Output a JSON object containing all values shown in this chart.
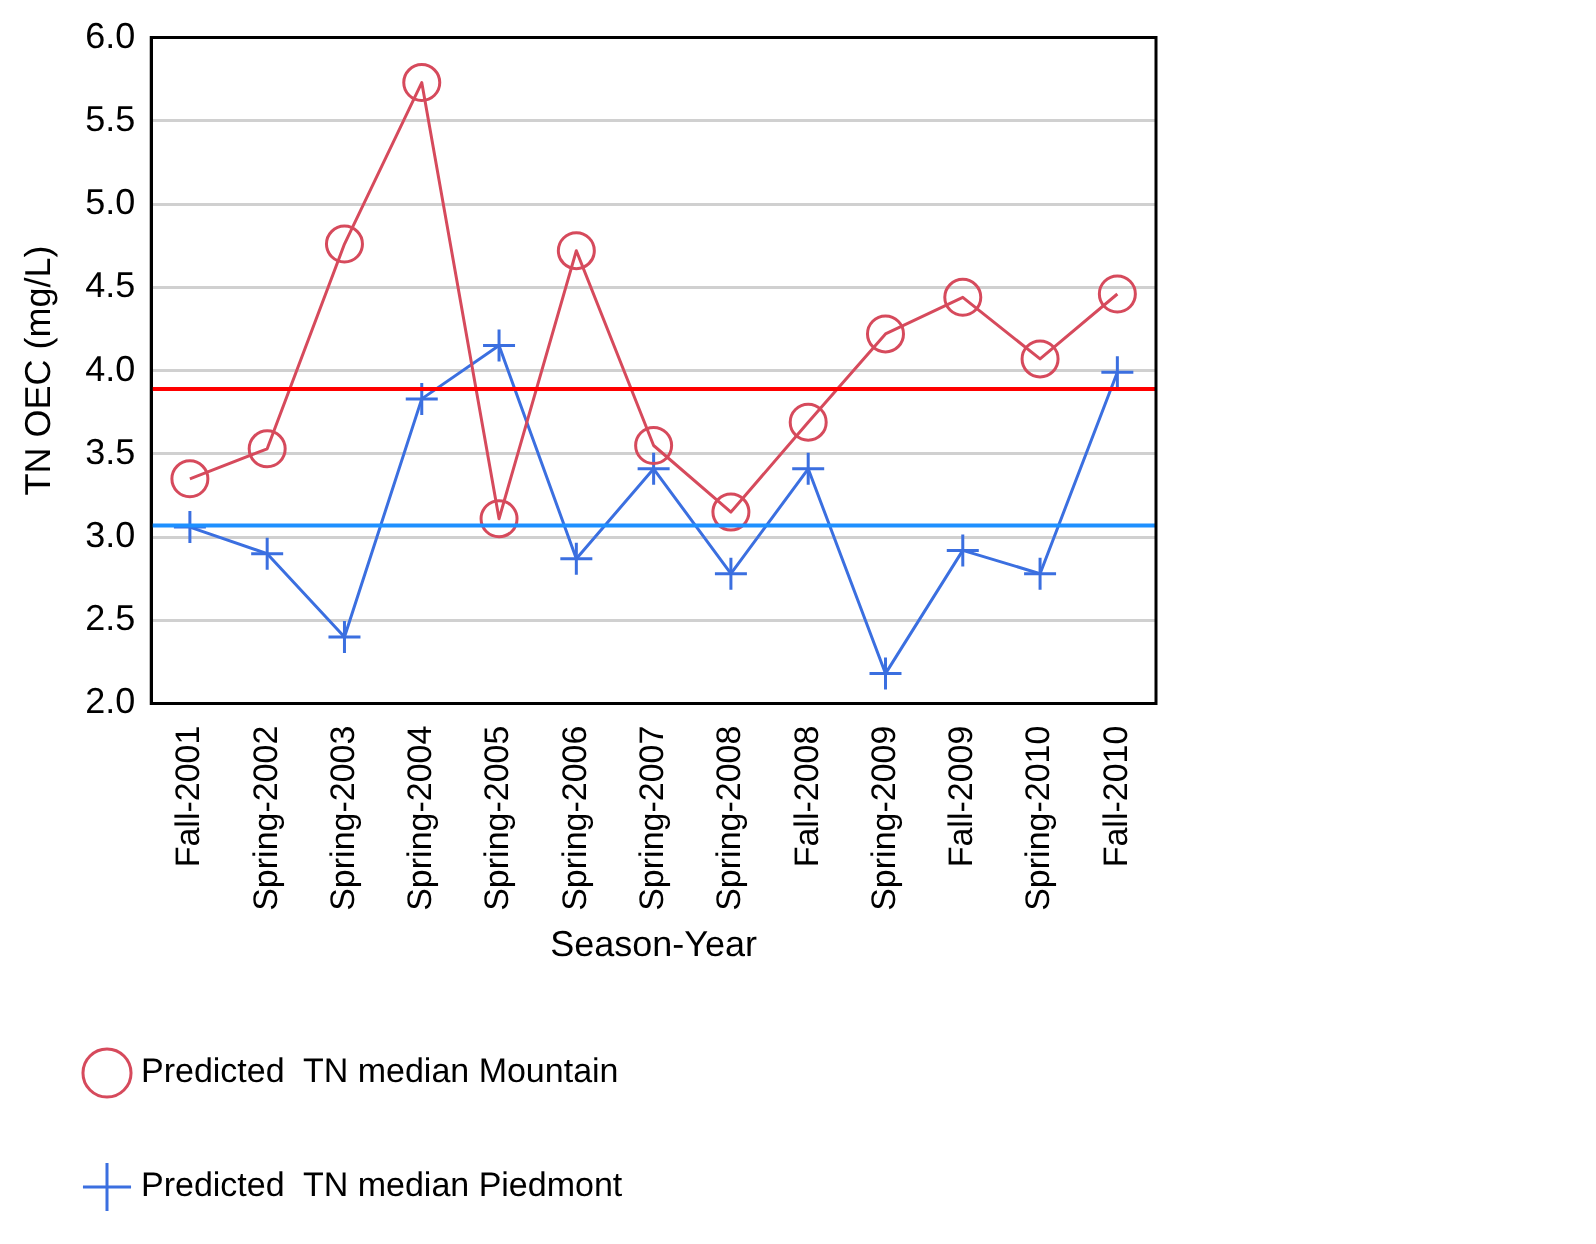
{
  "chart_data": {
    "type": "line",
    "xlabel": "Season-Year",
    "ylabel": "TN OEC (mg/L)",
    "categories": [
      "Fall-2001",
      "Spring-2002",
      "Spring-2003",
      "Spring-2004",
      "Spring-2005",
      "Spring-2006",
      "Spring-2007",
      "Spring-2008",
      "Fall-2008",
      "Spring-2009",
      "Fall-2009",
      "Spring-2010",
      "Fall-2010"
    ],
    "series": [
      {
        "name": "Predicted  TN median Mountain",
        "color": "#d64a5c",
        "marker": "circle",
        "values": [
          3.35,
          3.53,
          4.76,
          5.73,
          3.11,
          4.72,
          3.55,
          3.15,
          3.69,
          4.22,
          4.44,
          4.07,
          4.46
        ]
      },
      {
        "name": "Predicted  TN median Piedmont",
        "color": "#3b6fe0",
        "marker": "cross",
        "values": [
          3.06,
          2.9,
          2.4,
          3.83,
          4.15,
          2.87,
          3.41,
          2.78,
          3.41,
          2.18,
          2.92,
          2.78,
          3.99
        ]
      }
    ],
    "ref_lines": [
      {
        "axis": "y",
        "value": 3.89,
        "color": "#ff0000"
      },
      {
        "axis": "y",
        "value": 3.07,
        "color": "#1e90ff"
      }
    ],
    "ylim": [
      2.0,
      6.0
    ],
    "yticks": [
      {
        "value": 2,
        "label": "2.0"
      },
      {
        "value": 2.5,
        "label": "2.5"
      },
      {
        "value": 3,
        "label": "3.0"
      },
      {
        "value": 3.5,
        "label": "3.5"
      },
      {
        "value": 4,
        "label": "4.0"
      },
      {
        "value": 4.5,
        "label": "4.5"
      },
      {
        "value": 5,
        "label": "5.0"
      },
      {
        "value": 5.5,
        "label": "5.5"
      },
      {
        "value": 6,
        "label": "6.0"
      }
    ],
    "grid": "y",
    "legend": "bottom",
    "line_style": "solid"
  }
}
